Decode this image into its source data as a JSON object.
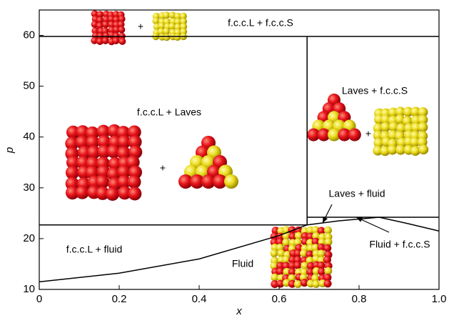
{
  "chart_data": {
    "type": "line",
    "x_label": "x",
    "y_label": "p",
    "xlim": [
      0,
      1
    ],
    "ylim": [
      10,
      65
    ],
    "xticks": [
      0,
      0.2,
      0.4,
      0.6,
      0.8,
      {
        "value": 1,
        "label": "1.0"
      }
    ],
    "yticks": [
      10,
      20,
      30,
      40,
      50,
      60
    ],
    "series": [
      {
        "color": "#000000",
        "x": [
          0,
          1
        ],
        "values": [
          59.8,
          59.8
        ]
      },
      {
        "color": "#000000",
        "x": [
          0.67,
          0.67
        ],
        "values": [
          22.7,
          59.8
        ]
      },
      {
        "color": "#000000",
        "x": [
          0,
          0.67
        ],
        "values": [
          22.7,
          22.7
        ]
      },
      {
        "color": "#000000",
        "x": [
          0.67,
          1
        ],
        "values": [
          24.2,
          24.2
        ]
      },
      {
        "color": "#000000",
        "x": [
          0,
          0.2,
          0.4,
          0.6,
          0.67,
          0.75,
          0.85,
          0.92,
          1
        ],
        "values": [
          11.5,
          13.2,
          16,
          20.6,
          22.7,
          23.5,
          24.2,
          23,
          21.5
        ]
      }
    ],
    "annotations": [
      "f.c.c.L + f.c.c.S",
      "f.c.c.L + Laves",
      "Laves + f.c.c.S",
      "Laves + fluid",
      "f.c.c.L + fluid",
      "Fluid",
      "Fluid + f.c.c.S",
      "+",
      "+",
      "+"
    ]
  }
}
